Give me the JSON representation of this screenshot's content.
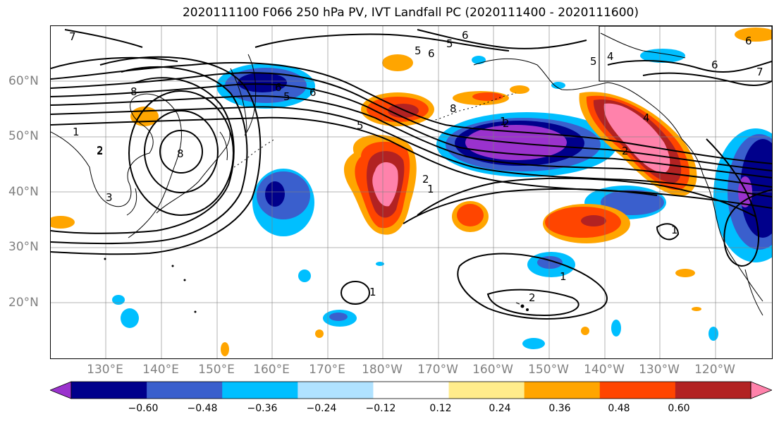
{
  "title": "2020111100 F066 250 hPa PV, IVT Landfall PC (2020111400 - 2020111600)",
  "lat_labels": [
    "60°N",
    "50°N",
    "40°N",
    "30°N",
    "20°N"
  ],
  "lon_labels": [
    "130°E",
    "140°E",
    "150°E",
    "160°E",
    "170°E",
    "180°W",
    "170°W",
    "160°W",
    "150°W",
    "140°W",
    "130°W",
    "120°W"
  ],
  "colorbar": {
    "colors": [
      "#9a32cd",
      "#00008b",
      "#3a5fcd",
      "#00bfff",
      "#b0e2ff",
      "#ffffff",
      "#ffec8b",
      "#ffa500",
      "#ff4500",
      "#b22222",
      "#ff82ab"
    ],
    "tick_labels": [
      "−0.60",
      "−0.48",
      "−0.36",
      "−0.24",
      "−0.12",
      "0.12",
      "0.24",
      "0.36",
      "0.48",
      "0.60"
    ]
  },
  "contour_labels": [
    "7",
    "6",
    "5",
    "5",
    "6",
    "4",
    "5",
    "6",
    "7",
    "6",
    "8",
    "6",
    "2",
    "1",
    "2",
    "3",
    "8",
    "5",
    "8",
    "2",
    "1",
    "1",
    "2",
    "1",
    "1",
    "2",
    "1",
    "2",
    "4",
    "5",
    "6"
  ]
}
